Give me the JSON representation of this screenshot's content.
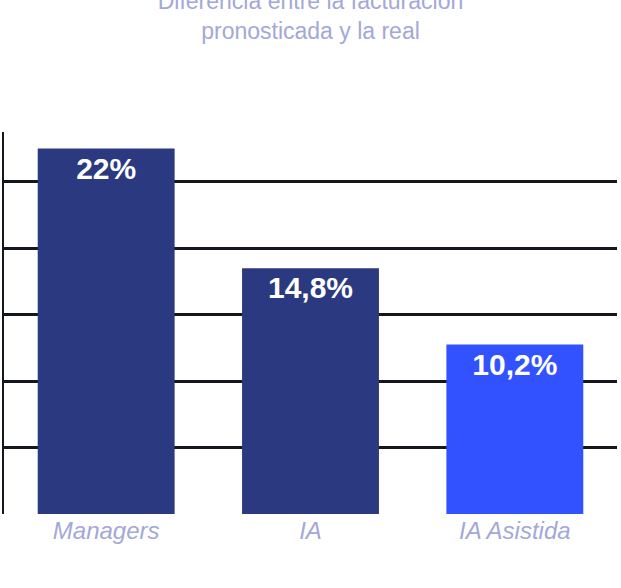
{
  "chart_data": {
    "type": "bar",
    "title": "Diferencia entre la facturación pronosticada y la real",
    "categories": [
      "Managers",
      "IA",
      "IA Asistida"
    ],
    "values": [
      22,
      14.8,
      10.2
    ],
    "value_labels": [
      "22%",
      "14,8%",
      "10,2%"
    ],
    "colors": [
      "#2b3a80",
      "#2b3a80",
      "#3352ff"
    ],
    "ylim": [
      0,
      23
    ],
    "yticks": [
      0,
      4,
      8,
      12,
      16,
      20
    ],
    "grid": true,
    "data_labels": true,
    "tick_labels": "x"
  }
}
